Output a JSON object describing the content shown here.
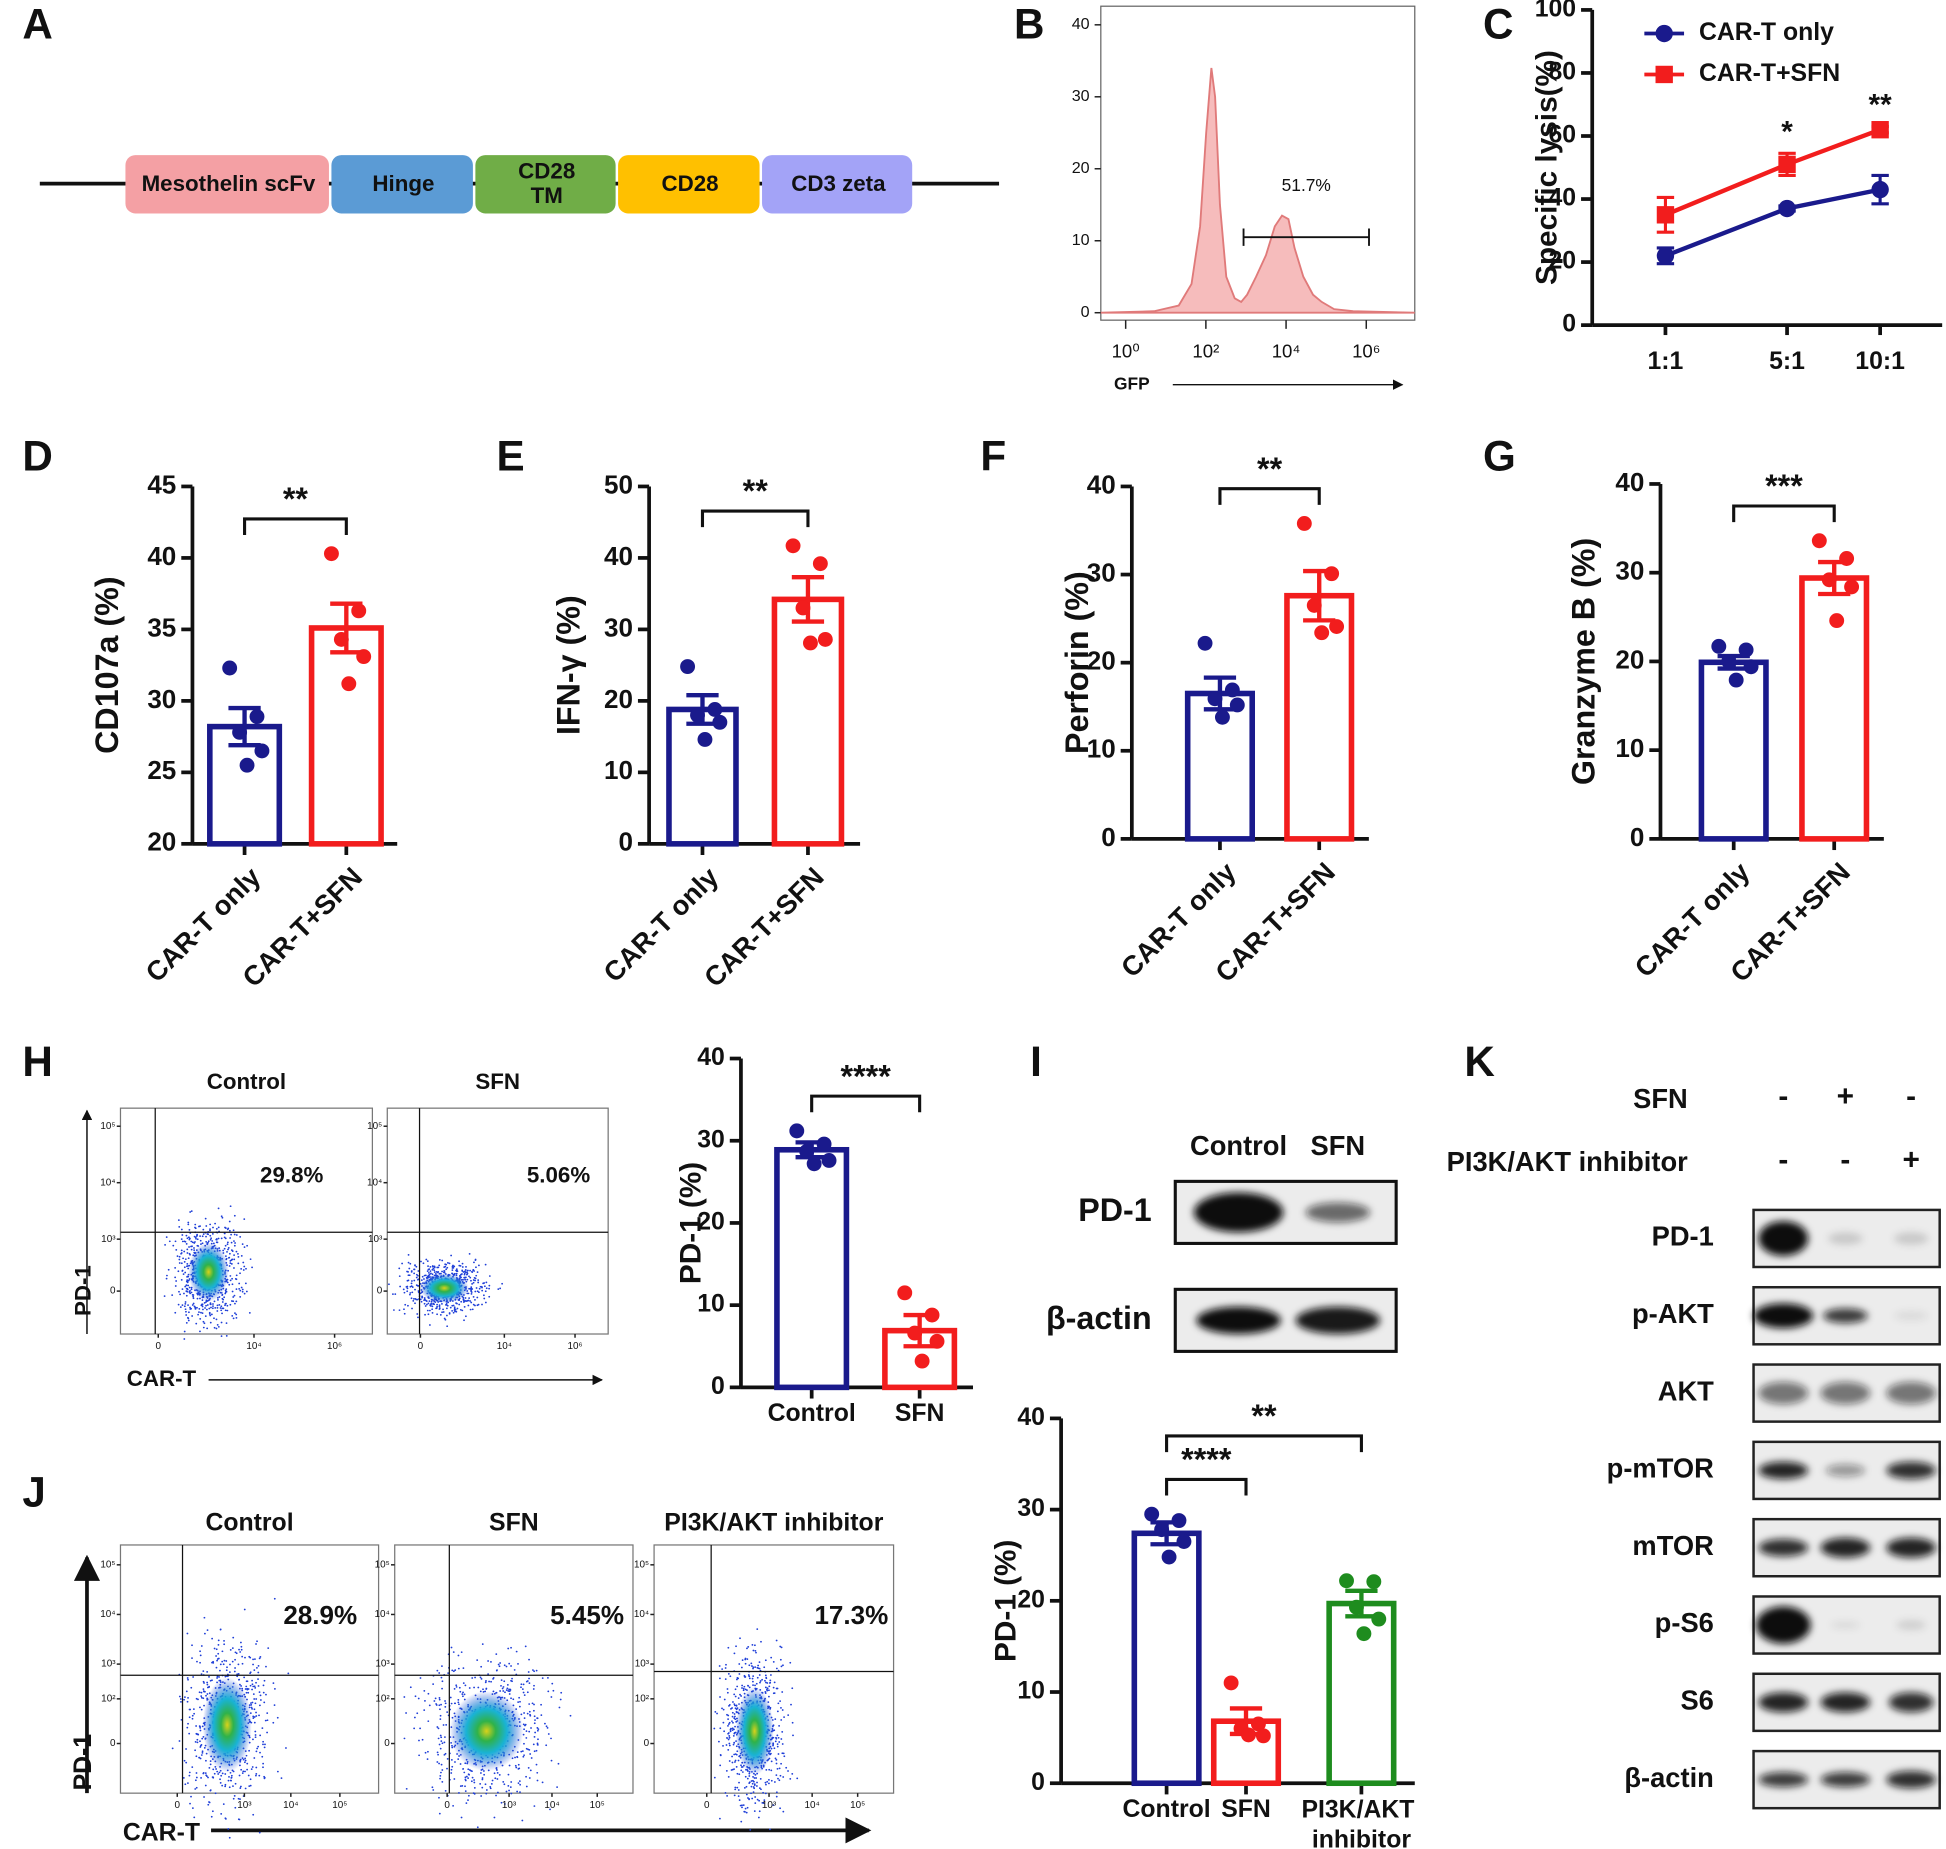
{
  "construct": {
    "panel": "A",
    "segments": [
      {
        "lines": [
          "Mesothelin scFv"
        ],
        "color": "#f4a0a4"
      },
      {
        "lines": [
          "Hinge"
        ],
        "color": "#5b9bd5"
      },
      {
        "lines": [
          "CD28",
          "TM"
        ],
        "color": "#70ad47"
      },
      {
        "lines": [
          "CD28"
        ],
        "color": "#ffc000"
      },
      {
        "lines": [
          "CD3 zeta"
        ],
        "color": "#a3a3f7"
      }
    ]
  },
  "chart_data": [
    {
      "type": "area",
      "panel": "B",
      "xlabel": "GFP",
      "xscale": "log",
      "color": "#f4b0b0",
      "x": [
        0.24,
        5.1,
        21,
        44,
        72,
        102,
        137,
        170,
        225,
        323,
        525,
        760,
        1070,
        1780,
        3160,
        5250,
        7940,
        11500,
        16200,
        26900,
        47000,
        77600,
        158000,
        468000,
        16200000
      ],
      "values": [
        0,
        0.2,
        1,
        4,
        12,
        25,
        34,
        30,
        15,
        5,
        2,
        1.5,
        2.5,
        5,
        8,
        12,
        13.5,
        13,
        9,
        5,
        2.5,
        1.5,
        0.5,
        0.2,
        0
      ],
      "xlim": [
        0.24,
        16200000
      ],
      "xticks": [
        {
          "value": 1,
          "label": "10⁰"
        },
        {
          "value": 100,
          "label": "10²"
        },
        {
          "value": 10000,
          "label": "10⁴"
        },
        {
          "value": 1000000,
          "label": "10⁶"
        }
      ],
      "ylim": [
        0,
        40
      ],
      "yticks": [
        0,
        10,
        20,
        30,
        40
      ],
      "gate": {
        "label": "51.7%",
        "x": [
          870,
          1170000
        ],
        "y": 10.5
      }
    },
    {
      "type": "line",
      "panel": "C",
      "ylabel": "Specific lysis(%)",
      "categories": [
        "1:1",
        "5:1",
        "10:1"
      ],
      "series": [
        {
          "name": "CAR-T only",
          "color": "#1a1a8c",
          "marker": "circle",
          "values": [
            22,
            37,
            43
          ],
          "errors": [
            2.5,
            0.8,
            4.5
          ]
        },
        {
          "name": "CAR-T+SFN",
          "color": "#f21d1d",
          "marker": "square",
          "values": [
            35,
            51,
            62
          ],
          "errors": [
            5.5,
            3.5,
            1
          ]
        }
      ],
      "ylim": [
        0,
        100
      ],
      "yticks": [
        0,
        20,
        40,
        60,
        80,
        100
      ],
      "legend": "upper left",
      "annotations": [
        {
          "label": "*",
          "category": 1
        },
        {
          "label": "**",
          "category": 2
        }
      ]
    },
    {
      "type": "bar",
      "panel": "D",
      "ylabel": "CD107a (%)",
      "categories": [
        "CAR-T only",
        "CAR-T+SFN"
      ],
      "colors": [
        "#1a1a8c",
        "#f21d1d"
      ],
      "values": [
        28.2,
        35.1
      ],
      "errors": [
        1.3,
        1.7
      ],
      "points": [
        [
          32.3,
          28.9,
          27.8,
          26.5,
          25.5
        ],
        [
          40.3,
          36.3,
          34.3,
          33.1,
          31.2
        ]
      ],
      "ylim": [
        20,
        45
      ],
      "yticks": [
        20,
        25,
        30,
        35,
        40,
        45
      ],
      "significance": [
        {
          "label": "**",
          "between": [
            0,
            1
          ]
        }
      ]
    },
    {
      "type": "bar",
      "panel": "E",
      "ylabel": "IFN-γ (%)",
      "categories": [
        "CAR-T only",
        "CAR-T+SFN"
      ],
      "colors": [
        "#1a1a8c",
        "#f21d1d"
      ],
      "values": [
        18.8,
        34.2
      ],
      "errors": [
        2,
        3.1
      ],
      "points": [
        [
          24.8,
          18.8,
          18,
          17,
          14.6
        ],
        [
          41.7,
          39.2,
          33,
          28.6,
          28.1
        ]
      ],
      "ylim": [
        0,
        50
      ],
      "yticks": [
        0,
        10,
        20,
        30,
        40,
        50
      ],
      "significance": [
        {
          "label": "**",
          "between": [
            0,
            1
          ]
        }
      ]
    },
    {
      "type": "bar",
      "panel": "F",
      "ylabel": "Perforin (%)",
      "categories": [
        "CAR-T only",
        "CAR-T+SFN"
      ],
      "colors": [
        "#1a1a8c",
        "#f21d1d"
      ],
      "values": [
        16.5,
        27.6
      ],
      "errors": [
        1.8,
        2.8
      ],
      "points": [
        [
          22.2,
          16.9,
          15.9,
          15.2,
          13.8
        ],
        [
          35.8,
          30.1,
          26.5,
          24.1,
          23.4
        ]
      ],
      "ylim": [
        0,
        40
      ],
      "yticks": [
        0,
        10,
        20,
        30,
        40
      ],
      "significance": [
        {
          "label": "**",
          "between": [
            0,
            1
          ]
        }
      ]
    },
    {
      "type": "bar",
      "panel": "G",
      "ylabel": "Granzyme B (%)",
      "categories": [
        "CAR-T only",
        "CAR-T+SFN"
      ],
      "colors": [
        "#1a1a8c",
        "#f21d1d"
      ],
      "values": [
        19.9,
        29.4
      ],
      "errors": [
        0.7,
        1.8
      ],
      "points": [
        [
          21.7,
          21.3,
          20,
          19.4,
          17.9
        ],
        [
          33.6,
          31.6,
          29.2,
          28.4,
          24.6
        ]
      ],
      "ylim": [
        0,
        40
      ],
      "yticks": [
        0,
        10,
        20,
        30,
        40
      ],
      "significance": [
        {
          "label": "***",
          "between": [
            0,
            1
          ]
        }
      ]
    },
    {
      "type": "bar",
      "ylabel": "PD-1 (%)",
      "categories": [
        "Control",
        "SFN"
      ],
      "colors": [
        "#1a1a8c",
        "#f21d1d"
      ],
      "values": [
        28.9,
        6.9
      ],
      "errors": [
        0.9,
        1.9
      ],
      "points": [
        [
          31.2,
          29.6,
          28.7,
          27.6,
          27.2
        ],
        [
          11.5,
          8.8,
          6.6,
          5.6,
          3.2
        ]
      ],
      "ylim": [
        0,
        40
      ],
      "yticks": [
        0,
        10,
        20,
        30,
        40
      ],
      "significance": [
        {
          "label": "****",
          "between": [
            0,
            1
          ]
        }
      ]
    },
    {
      "type": "bar",
      "ylabel": "PD-1 (%)",
      "categories": [
        "Control",
        "SFN",
        "PI3K/AKT inhibitor"
      ],
      "colors": [
        "#1a1a8c",
        "#f21d1d",
        "#1e8c1e"
      ],
      "values": [
        27.4,
        6.8,
        19.7
      ],
      "errors": [
        1.2,
        1.4,
        1.4
      ],
      "points": [
        [
          29.5,
          28.8,
          27.8,
          26.5,
          24.8
        ],
        [
          11,
          6.5,
          6,
          5.2,
          5.3
        ],
        [
          22.2,
          22.1,
          19.3,
          18,
          16.4
        ]
      ],
      "ylim": [
        0,
        40
      ],
      "yticks": [
        0,
        10,
        20,
        30,
        40
      ],
      "significance": [
        {
          "label": "****",
          "between": [
            0,
            1
          ]
        },
        {
          "label": "**",
          "between": [
            0,
            2
          ]
        }
      ]
    }
  ],
  "flow": [
    {
      "panel": "H",
      "ylabel": "PD-1",
      "xlabel": "CAR-T",
      "yticks": [
        "10⁵",
        "10⁴",
        "10³",
        "0"
      ],
      "xticks": [
        "0",
        "10⁴",
        "10⁶"
      ],
      "plots": [
        {
          "title": "Control",
          "percent": "29.8%"
        },
        {
          "title": "SFN",
          "percent": "5.06%"
        }
      ]
    },
    {
      "panel": "J",
      "ylabel": "PD-1",
      "xlabel": "CAR-T",
      "yticks": [
        "10⁵",
        "10⁴",
        "10³",
        "10²",
        "0"
      ],
      "xticks": [
        "0",
        "10³",
        "10⁴",
        "10⁵"
      ],
      "plots": [
        {
          "title": "Control",
          "percent": "28.9%"
        },
        {
          "title": "SFN",
          "percent": "5.45%"
        },
        {
          "title": "PI3K/AKT inhibitor",
          "percent": "17.3%"
        }
      ]
    }
  ],
  "blots": [
    {
      "panel": "I",
      "columns": [
        "Control",
        "SFN"
      ],
      "rows": [
        "PD-1",
        "β-actin"
      ]
    },
    {
      "panel": "K",
      "conditions": [
        {
          "name": "SFN",
          "signs": [
            "-",
            "+",
            "-"
          ]
        },
        {
          "name": "PI3K/AKT inhibitor",
          "signs": [
            "-",
            "-",
            "+"
          ]
        }
      ],
      "rows": [
        "PD-1",
        "p-AKT",
        "AKT",
        "p-mTOR",
        "mTOR",
        "p-S6",
        "S6",
        "β-actin"
      ]
    }
  ]
}
